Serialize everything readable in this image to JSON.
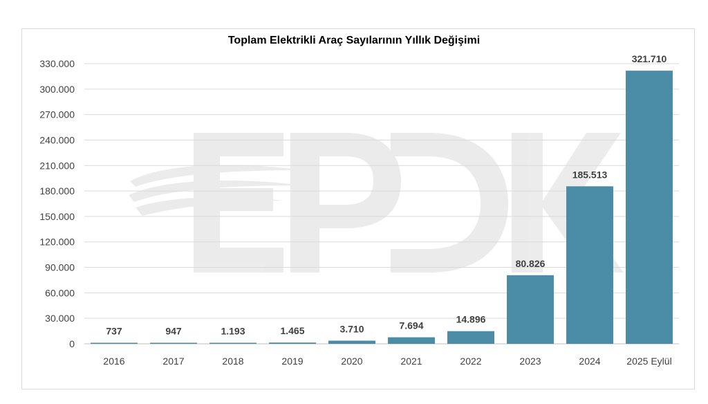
{
  "chart_data": {
    "type": "bar",
    "title": "Toplam Elektrikli Araç Sayılarının Yıllık Değişimi",
    "xlabel": "",
    "ylabel": "",
    "categories": [
      "2016",
      "2017",
      "2018",
      "2019",
      "2020",
      "2021",
      "2022",
      "2023",
      "2024",
      "2025 Eylül"
    ],
    "values": [
      737,
      947,
      1193,
      1465,
      3710,
      7694,
      14896,
      80826,
      185513,
      321710
    ],
    "value_labels": [
      "737",
      "947",
      "1.193",
      "1.465",
      "3.710",
      "7.694",
      "14.896",
      "80.826",
      "185.513",
      "321.710"
    ],
    "ylim": [
      0,
      330000
    ],
    "yticks": [
      0,
      30000,
      60000,
      90000,
      120000,
      150000,
      180000,
      210000,
      240000,
      270000,
      300000,
      330000
    ],
    "ytick_labels": [
      "0",
      "30.000",
      "60.000",
      "90.000",
      "120.000",
      "150.000",
      "180.000",
      "210.000",
      "240.000",
      "270.000",
      "300.000",
      "330.000"
    ],
    "grid": true,
    "legend": "none",
    "bar_color": "#4a8ba5",
    "grid_color": "#d9d9d9",
    "watermark_text": "EPDK"
  }
}
